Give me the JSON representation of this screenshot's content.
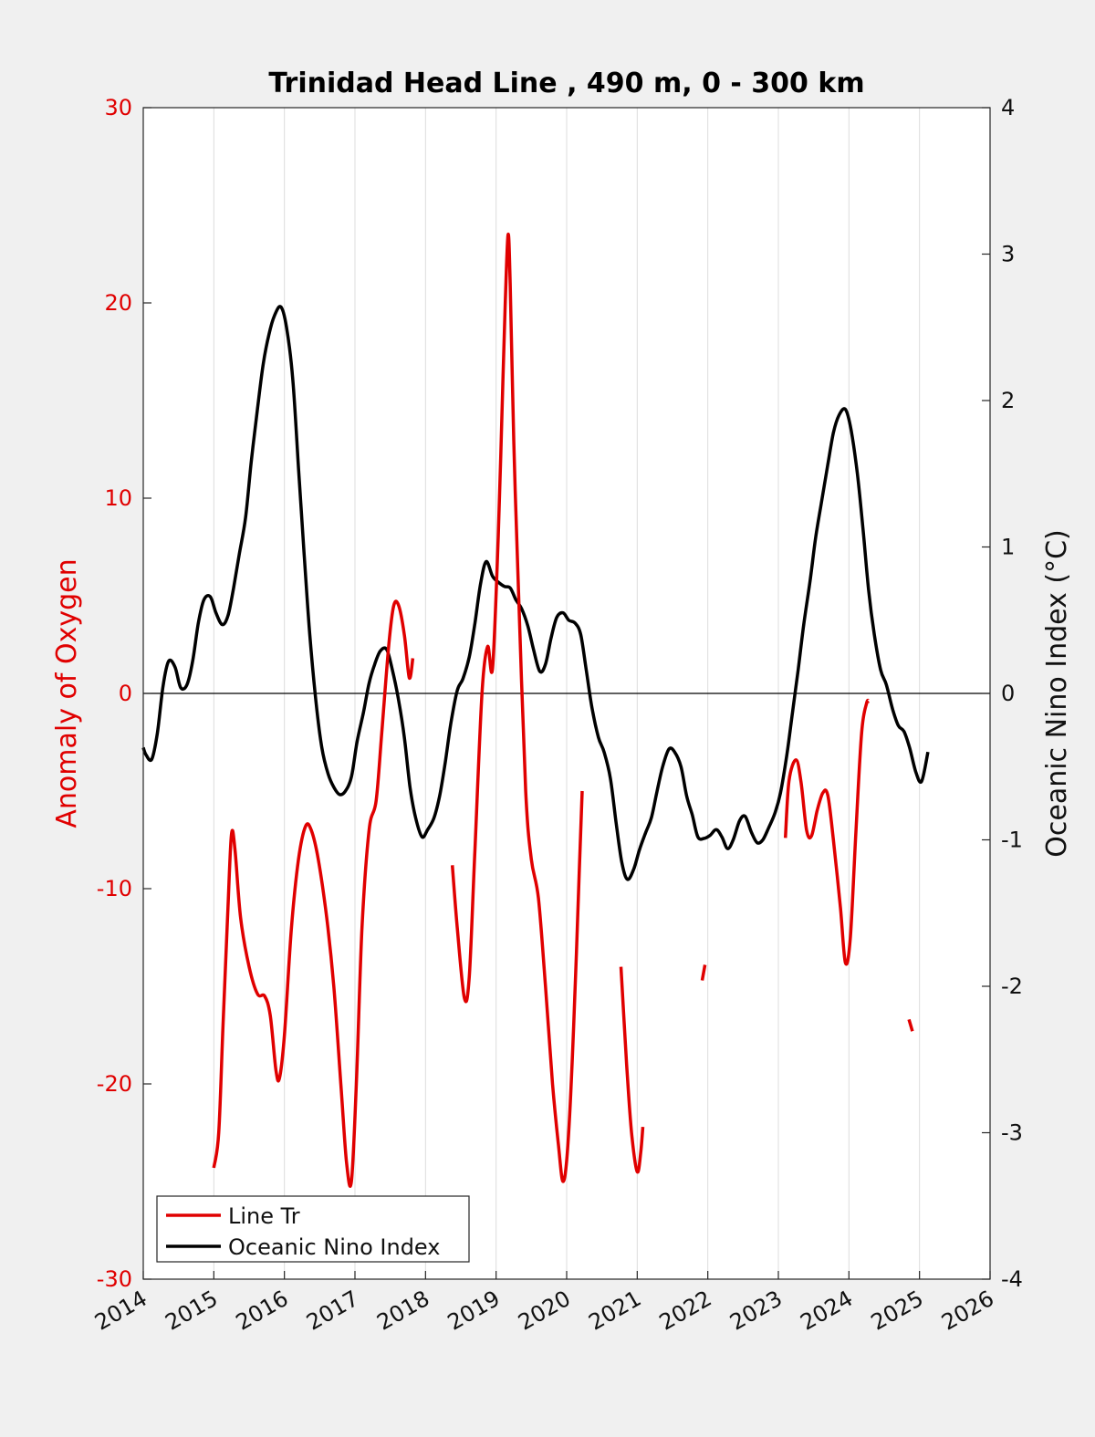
{
  "chart_data": {
    "type": "line",
    "title": "Trinidad Head Line , 490 m, 0 - 300 km",
    "xlabel": "",
    "ylabel_left": "Anomaly of Oxygen",
    "ylabel_right": "Oceanic Nino Index (°C)",
    "xlim": [
      2014,
      2026
    ],
    "ylim_left": [
      -30,
      30
    ],
    "ylim_right": [
      -4,
      4
    ],
    "x_ticks": [
      "2014",
      "2015",
      "2016",
      "2017",
      "2018",
      "2019",
      "2020",
      "2021",
      "2022",
      "2023",
      "2024",
      "2025",
      "2026"
    ],
    "y_left_ticks": [
      "-30",
      "-20",
      "-10",
      "0",
      "10",
      "20",
      "30"
    ],
    "y_right_ticks": [
      "-4",
      "-3",
      "-2",
      "-1",
      "0",
      "1",
      "2",
      "3",
      "4"
    ],
    "grid": "x-only",
    "legend_position": "bottom-left",
    "colors": {
      "line_tr": "#e00000",
      "oni": "#000000"
    },
    "series": [
      {
        "name": "Line Tr",
        "axis": "left",
        "segments": [
          [
            [
              2015.0,
              -24.3
            ],
            [
              2015.07,
              -22.5
            ],
            [
              2015.13,
              -17
            ],
            [
              2015.2,
              -11
            ],
            [
              2015.25,
              -7.2
            ],
            [
              2015.3,
              -8
            ],
            [
              2015.38,
              -11.5
            ],
            [
              2015.5,
              -14
            ],
            [
              2015.62,
              -15.4
            ],
            [
              2015.72,
              -15.5
            ],
            [
              2015.8,
              -16.5
            ],
            [
              2015.88,
              -19.3
            ],
            [
              2015.93,
              -19.7
            ],
            [
              2016.0,
              -17.5
            ],
            [
              2016.1,
              -12
            ],
            [
              2016.2,
              -8.5
            ],
            [
              2016.3,
              -6.8
            ],
            [
              2016.38,
              -7
            ],
            [
              2016.48,
              -8.5
            ],
            [
              2016.6,
              -11.5
            ],
            [
              2016.7,
              -15
            ],
            [
              2016.8,
              -20
            ],
            [
              2016.88,
              -24
            ],
            [
              2016.95,
              -25
            ],
            [
              2017.02,
              -20
            ],
            [
              2017.1,
              -12
            ],
            [
              2017.2,
              -7
            ],
            [
              2017.3,
              -5.5
            ],
            [
              2017.38,
              -2
            ],
            [
              2017.48,
              2.5
            ],
            [
              2017.55,
              4.5
            ],
            [
              2017.62,
              4.5
            ],
            [
              2017.7,
              3
            ],
            [
              2017.77,
              0.8
            ],
            [
              2017.82,
              1.8
            ]
          ],
          [
            [
              2018.38,
              -8.8
            ],
            [
              2018.45,
              -12
            ],
            [
              2018.55,
              -15.6
            ],
            [
              2018.62,
              -14.5
            ],
            [
              2018.7,
              -8
            ],
            [
              2018.8,
              0
            ],
            [
              2018.88,
              2.4
            ],
            [
              2018.95,
              1.3
            ],
            [
              2019.03,
              8
            ],
            [
              2019.08,
              14
            ],
            [
              2019.13,
              20
            ],
            [
              2019.17,
              23.5
            ],
            [
              2019.2,
              21
            ],
            [
              2019.25,
              13
            ],
            [
              2019.32,
              5
            ],
            [
              2019.42,
              -5
            ],
            [
              2019.5,
              -8.5
            ],
            [
              2019.6,
              -10.5
            ],
            [
              2019.7,
              -15
            ],
            [
              2019.8,
              -20
            ],
            [
              2019.88,
              -23
            ],
            [
              2019.95,
              -25
            ],
            [
              2020.02,
              -23
            ],
            [
              2020.1,
              -17
            ],
            [
              2020.18,
              -9
            ],
            [
              2020.22,
              -5
            ]
          ],
          [
            [
              2020.77,
              -14
            ],
            [
              2020.85,
              -19
            ],
            [
              2020.92,
              -22.5
            ],
            [
              2021.0,
              -24.5
            ],
            [
              2021.05,
              -23.5
            ],
            [
              2021.08,
              -22.2
            ]
          ],
          [
            [
              2021.92,
              -14.7
            ],
            [
              2021.96,
              -13.9
            ]
          ],
          [
            [
              2023.1,
              -7.4
            ],
            [
              2023.15,
              -4.5
            ],
            [
              2023.25,
              -3.4
            ],
            [
              2023.32,
              -4.5
            ],
            [
              2023.4,
              -7
            ],
            [
              2023.47,
              -7.3
            ],
            [
              2023.55,
              -6
            ],
            [
              2023.63,
              -5.1
            ],
            [
              2023.7,
              -5.2
            ],
            [
              2023.78,
              -7.5
            ],
            [
              2023.88,
              -11
            ],
            [
              2023.95,
              -13.8
            ],
            [
              2024.02,
              -12.5
            ],
            [
              2024.1,
              -7
            ],
            [
              2024.18,
              -2
            ],
            [
              2024.25,
              -0.5
            ],
            [
              2024.28,
              -0.4
            ]
          ],
          [
            [
              2024.85,
              -16.7
            ],
            [
              2024.9,
              -17.3
            ]
          ]
        ]
      },
      {
        "name": "Oceanic Nino Index",
        "axis": "right",
        "points": [
          [
            2014.0,
            -0.37
          ],
          [
            2014.04,
            -0.42
          ],
          [
            2014.12,
            -0.45
          ],
          [
            2014.2,
            -0.27
          ],
          [
            2014.28,
            0.05
          ],
          [
            2014.36,
            0.22
          ],
          [
            2014.45,
            0.18
          ],
          [
            2014.53,
            0.04
          ],
          [
            2014.62,
            0.06
          ],
          [
            2014.7,
            0.22
          ],
          [
            2014.78,
            0.48
          ],
          [
            2014.86,
            0.64
          ],
          [
            2014.95,
            0.66
          ],
          [
            2015.03,
            0.55
          ],
          [
            2015.12,
            0.47
          ],
          [
            2015.2,
            0.53
          ],
          [
            2015.28,
            0.72
          ],
          [
            2015.36,
            0.95
          ],
          [
            2015.45,
            1.2
          ],
          [
            2015.53,
            1.58
          ],
          [
            2015.62,
            1.95
          ],
          [
            2015.7,
            2.25
          ],
          [
            2015.78,
            2.45
          ],
          [
            2015.86,
            2.58
          ],
          [
            2015.95,
            2.64
          ],
          [
            2016.03,
            2.5
          ],
          [
            2016.12,
            2.14
          ],
          [
            2016.2,
            1.54
          ],
          [
            2016.28,
            0.95
          ],
          [
            2016.36,
            0.4
          ],
          [
            2016.45,
            -0.07
          ],
          [
            2016.53,
            -0.37
          ],
          [
            2016.62,
            -0.55
          ],
          [
            2016.7,
            -0.64
          ],
          [
            2016.78,
            -0.69
          ],
          [
            2016.86,
            -0.67
          ],
          [
            2016.95,
            -0.57
          ],
          [
            2017.03,
            -0.33
          ],
          [
            2017.12,
            -0.13
          ],
          [
            2017.2,
            0.07
          ],
          [
            2017.28,
            0.2
          ],
          [
            2017.36,
            0.29
          ],
          [
            2017.45,
            0.3
          ],
          [
            2017.53,
            0.16
          ],
          [
            2017.62,
            -0.05
          ],
          [
            2017.7,
            -0.3
          ],
          [
            2017.78,
            -0.64
          ],
          [
            2017.86,
            -0.85
          ],
          [
            2017.95,
            -0.98
          ],
          [
            2018.03,
            -0.93
          ],
          [
            2018.12,
            -0.85
          ],
          [
            2018.2,
            -0.7
          ],
          [
            2018.28,
            -0.47
          ],
          [
            2018.36,
            -0.2
          ],
          [
            2018.45,
            0.02
          ],
          [
            2018.53,
            0.1
          ],
          [
            2018.62,
            0.25
          ],
          [
            2018.7,
            0.48
          ],
          [
            2018.78,
            0.75
          ],
          [
            2018.86,
            0.9
          ],
          [
            2018.95,
            0.8
          ],
          [
            2019.03,
            0.76
          ],
          [
            2019.12,
            0.73
          ],
          [
            2019.2,
            0.72
          ],
          [
            2019.28,
            0.64
          ],
          [
            2019.36,
            0.58
          ],
          [
            2019.45,
            0.46
          ],
          [
            2019.53,
            0.3
          ],
          [
            2019.62,
            0.15
          ],
          [
            2019.7,
            0.2
          ],
          [
            2019.78,
            0.38
          ],
          [
            2019.86,
            0.52
          ],
          [
            2019.95,
            0.55
          ],
          [
            2020.03,
            0.5
          ],
          [
            2020.12,
            0.48
          ],
          [
            2020.2,
            0.4
          ],
          [
            2020.28,
            0.15
          ],
          [
            2020.36,
            -0.1
          ],
          [
            2020.45,
            -0.3
          ],
          [
            2020.53,
            -0.4
          ],
          [
            2020.62,
            -0.58
          ],
          [
            2020.7,
            -0.88
          ],
          [
            2020.78,
            -1.15
          ],
          [
            2020.86,
            -1.27
          ],
          [
            2020.95,
            -1.2
          ],
          [
            2021.03,
            -1.07
          ],
          [
            2021.12,
            -0.95
          ],
          [
            2021.2,
            -0.85
          ],
          [
            2021.28,
            -0.67
          ],
          [
            2021.36,
            -0.5
          ],
          [
            2021.45,
            -0.38
          ],
          [
            2021.53,
            -0.4
          ],
          [
            2021.62,
            -0.5
          ],
          [
            2021.7,
            -0.7
          ],
          [
            2021.78,
            -0.83
          ],
          [
            2021.86,
            -0.98
          ],
          [
            2021.95,
            -0.99
          ],
          [
            2022.03,
            -0.97
          ],
          [
            2022.12,
            -0.93
          ],
          [
            2022.2,
            -0.98
          ],
          [
            2022.28,
            -1.06
          ],
          [
            2022.36,
            -1.0
          ],
          [
            2022.45,
            -0.87
          ],
          [
            2022.53,
            -0.84
          ],
          [
            2022.62,
            -0.95
          ],
          [
            2022.7,
            -1.02
          ],
          [
            2022.78,
            -1.0
          ],
          [
            2022.86,
            -0.92
          ],
          [
            2022.95,
            -0.82
          ],
          [
            2023.03,
            -0.68
          ],
          [
            2023.12,
            -0.42
          ],
          [
            2023.2,
            -0.13
          ],
          [
            2023.28,
            0.16
          ],
          [
            2023.36,
            0.47
          ],
          [
            2023.45,
            0.77
          ],
          [
            2023.53,
            1.07
          ],
          [
            2023.62,
            1.33
          ],
          [
            2023.7,
            1.56
          ],
          [
            2023.78,
            1.78
          ],
          [
            2023.86,
            1.9
          ],
          [
            2023.95,
            1.94
          ],
          [
            2024.03,
            1.8
          ],
          [
            2024.12,
            1.5
          ],
          [
            2024.2,
            1.12
          ],
          [
            2024.28,
            0.7
          ],
          [
            2024.36,
            0.4
          ],
          [
            2024.45,
            0.16
          ],
          [
            2024.53,
            0.06
          ],
          [
            2024.62,
            -0.11
          ],
          [
            2024.7,
            -0.22
          ],
          [
            2024.78,
            -0.26
          ],
          [
            2024.86,
            -0.37
          ],
          [
            2024.95,
            -0.54
          ],
          [
            2025.03,
            -0.6
          ],
          [
            2025.12,
            -0.4
          ]
        ]
      }
    ]
  }
}
